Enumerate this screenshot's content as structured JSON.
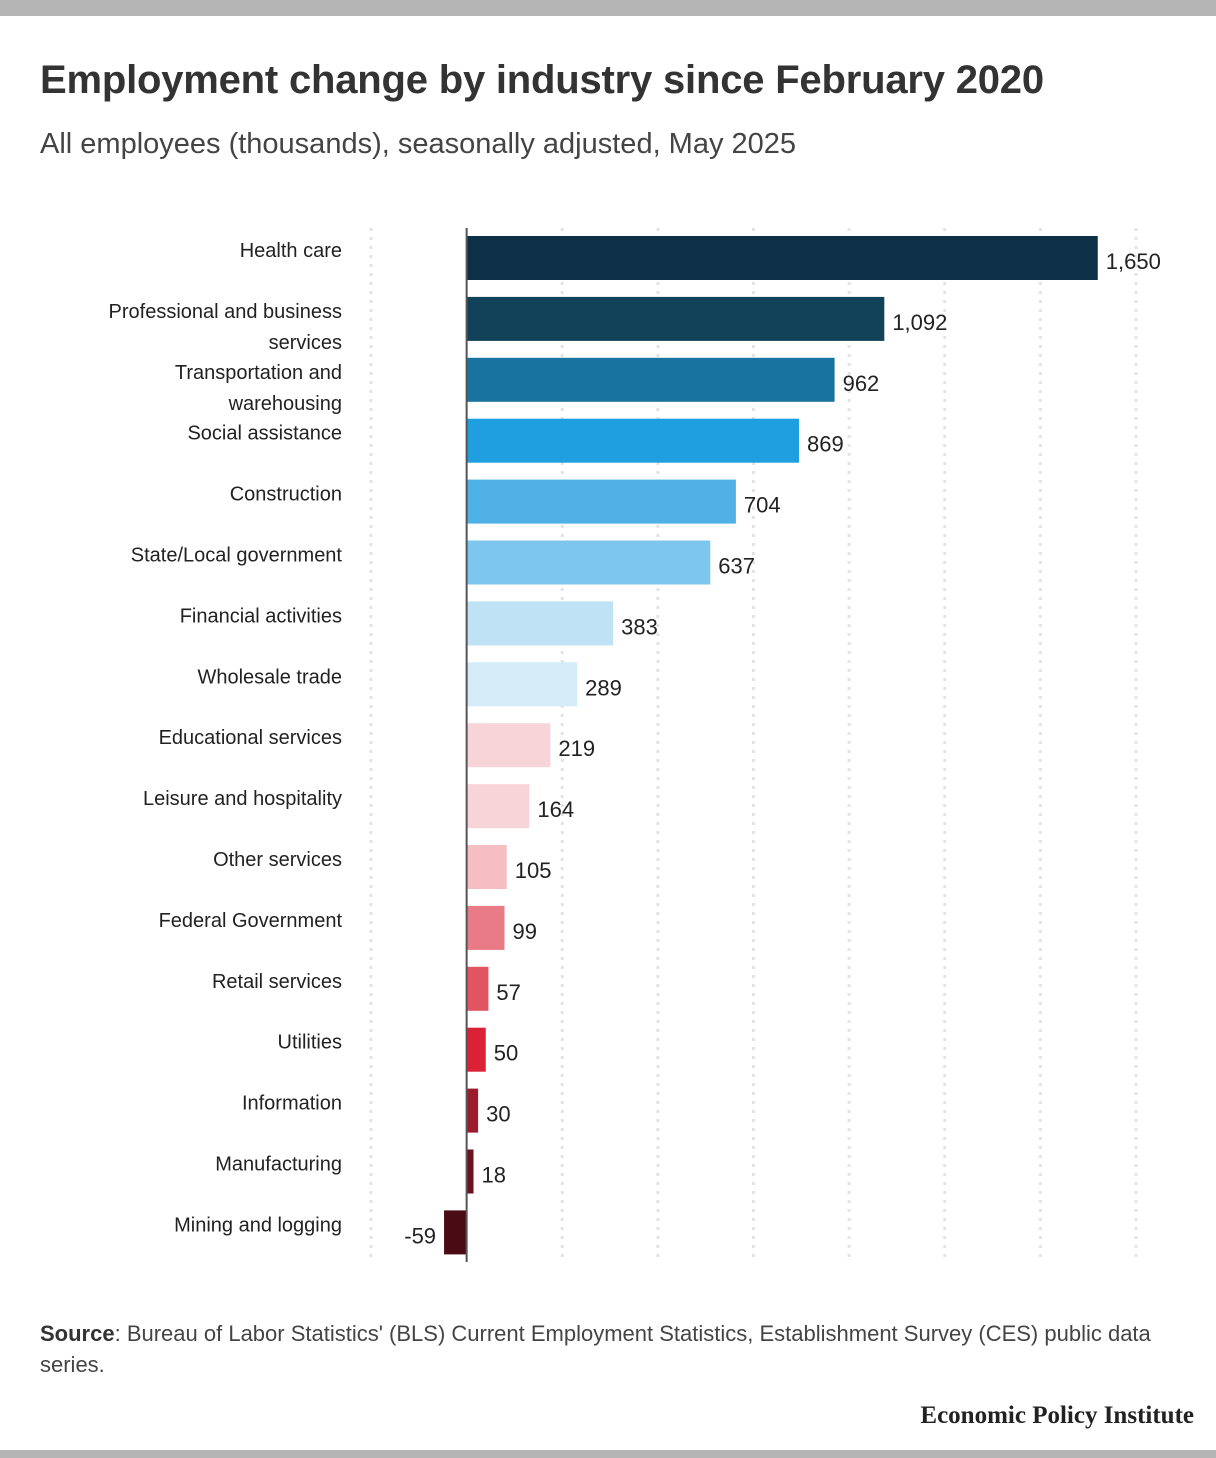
{
  "title": "Employment change by industry since February 2020",
  "subtitle": "All employees (thousands), seasonally adjusted, May 2025",
  "source_label": "Source",
  "source_text": ": Bureau of Labor Statistics' (BLS) Current Employment Statistics, Establishment Survey (CES) public data series.",
  "brand": "Economic Policy Institute",
  "colors": {
    "background": "#ffffff",
    "band": "#b5b5b5",
    "gridline": "#e3e3e3",
    "baseline": "#555555"
  },
  "chart_data": {
    "type": "bar",
    "orientation": "horizontal",
    "categories": [
      [
        "Health care"
      ],
      [
        "Professional and business",
        "services"
      ],
      [
        "Transportation and",
        "warehousing"
      ],
      [
        "Social assistance"
      ],
      [
        "Construction"
      ],
      [
        "State/Local government"
      ],
      [
        "Financial activities"
      ],
      [
        "Wholesale trade"
      ],
      [
        "Educational services"
      ],
      [
        "Leisure and hospitality"
      ],
      [
        "Other services"
      ],
      [
        "Federal Government"
      ],
      [
        "Retail services"
      ],
      [
        "Utilities"
      ],
      [
        "Information"
      ],
      [
        "Manufacturing"
      ],
      [
        "Mining and logging"
      ]
    ],
    "values": [
      1650,
      1092,
      962,
      869,
      704,
      637,
      383,
      289,
      219,
      164,
      105,
      99,
      57,
      50,
      30,
      18,
      -59
    ],
    "value_labels": [
      "1,650",
      "1,092",
      "962",
      "869",
      "704",
      "637",
      "383",
      "289",
      "219",
      "164",
      "105",
      "99",
      "57",
      "50",
      "30",
      "18",
      "-59"
    ],
    "bar_colors": [
      "#0d3046",
      "#11425a",
      "#18739e",
      "#1f9fdf",
      "#4fb1e5",
      "#7dc7ee",
      "#bfe2f5",
      "#d4ebf8",
      "#f7d4d8",
      "#f7d4d8",
      "#f4bec3",
      "#e87b85",
      "#e05561",
      "#db2135",
      "#9b1c2c",
      "#6a121d",
      "#4a0b14"
    ],
    "xlim": [
      -250,
      1750
    ],
    "grid_step": 250,
    "grid": true,
    "legend": "none"
  }
}
